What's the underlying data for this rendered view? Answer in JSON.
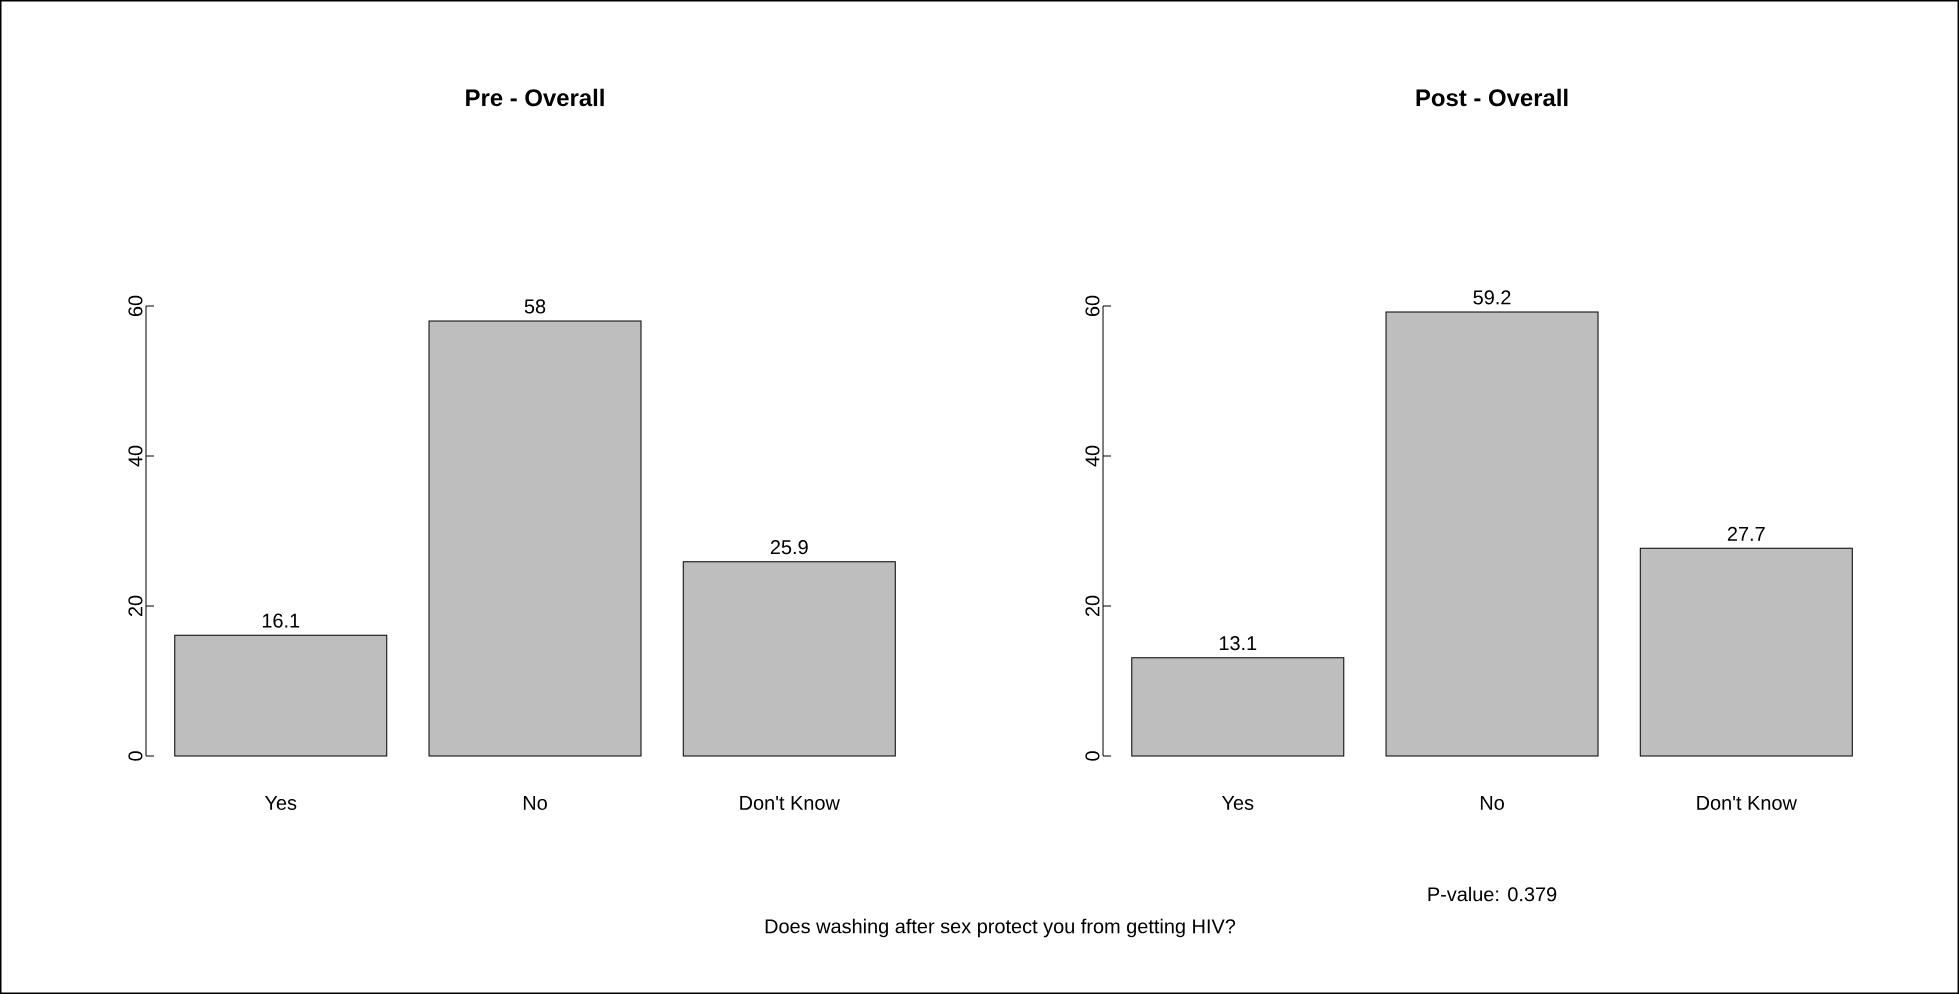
{
  "chart_data": [
    {
      "type": "bar",
      "title": "Pre - Overall",
      "categories": [
        "Yes",
        "No",
        "Don't Know"
      ],
      "values": [
        16.1,
        58,
        25.9
      ],
      "color": "#bebebe",
      "ylim": [
        0,
        60
      ],
      "yticks": [
        0,
        20,
        40,
        60
      ],
      "data_labels": true
    },
    {
      "type": "bar",
      "title": "Post - Overall",
      "categories": [
        "Yes",
        "No",
        "Don't Know"
      ],
      "values": [
        13.1,
        59.2,
        27.7
      ],
      "color": "#bebebe",
      "ylim": [
        0,
        60
      ],
      "yticks": [
        0,
        20,
        40,
        60
      ],
      "data_labels": true,
      "annotations": [
        "P-value: 0.379",
        "Does washing after sex protect you from getting HIV?"
      ]
    }
  ]
}
